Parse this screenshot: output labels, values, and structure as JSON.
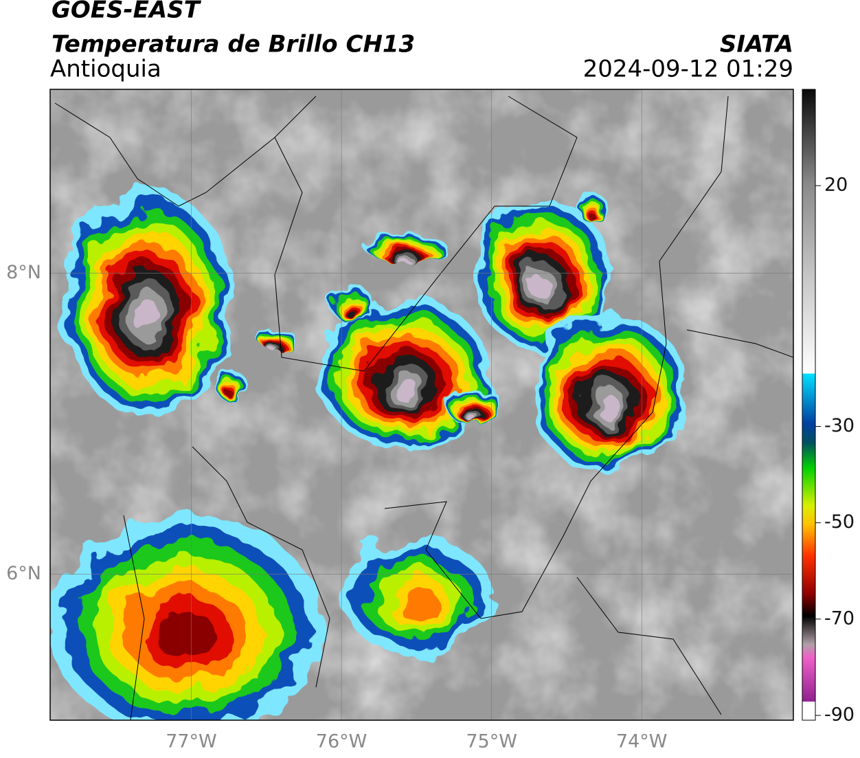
{
  "header": {
    "title": "GOES-EAST",
    "subtitle": "Temperatura de Brillo CH13",
    "region": "Antioquia",
    "source": "SIATA",
    "datetime": "2024-09-12 01:29"
  },
  "map": {
    "xlim": [
      -77.94,
      -72.99
    ],
    "ylim": [
      5.03,
      9.22
    ],
    "xticks": [
      {
        "value": -77,
        "label": "77°W"
      },
      {
        "value": -76,
        "label": "76°W"
      },
      {
        "value": -75,
        "label": "75°W"
      },
      {
        "value": -74,
        "label": "74°W"
      }
    ],
    "yticks": [
      {
        "value": 8,
        "label": "8°N"
      },
      {
        "value": 6,
        "label": "6°N"
      }
    ],
    "grid": true
  },
  "colorbar": {
    "clim": [
      -91,
      40
    ],
    "ticks": [
      20,
      -30,
      -50,
      -70,
      -90
    ]
  }
}
